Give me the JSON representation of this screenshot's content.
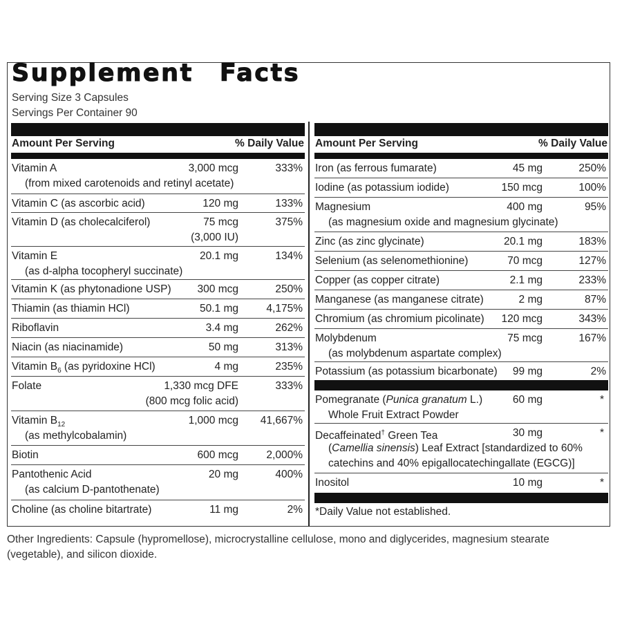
{
  "title": [
    "Supplement",
    "Facts"
  ],
  "serving_size": "Serving Size 3 Capsules",
  "servings_per_container": "Servings Per Container 90",
  "header": {
    "amount": "Amount Per Serving",
    "dv": "% Daily Value"
  },
  "left_rows": [
    {
      "name": "Vitamin A",
      "amount": "3,000 mcg",
      "dv": "333%",
      "sub": [
        "(from mixed carotenoids and retinyl acetate)"
      ]
    },
    {
      "name": "Vitamin C (as ascorbic acid)",
      "amount": "120 mg",
      "dv": "133%"
    },
    {
      "name": "Vitamin D (as cholecalciferol)",
      "amount": "75 mcg",
      "dv": "375%",
      "amount_sub": "(3,000 IU)"
    },
    {
      "name": "Vitamin E",
      "amount": "20.1 mg",
      "dv": "134%",
      "sub": [
        "(as d-alpha tocopheryl succinate)"
      ]
    },
    {
      "name": "Vitamin K (as phytonadione USP)",
      "amount": "300 mcg",
      "dv": "250%"
    },
    {
      "name": "Thiamin (as thiamin HCl)",
      "amount": "50.1 mg",
      "dv": "4,175%"
    },
    {
      "name": "Riboflavin",
      "amount": "3.4 mg",
      "dv": "262%"
    },
    {
      "name": "Niacin (as niacinamide)",
      "amount": "50 mg",
      "dv": "313%"
    },
    {
      "name": "Vitamin B",
      "name_sub": "6",
      "name_after": " (as pyridoxine HCl)",
      "amount": "4 mg",
      "dv": "235%"
    },
    {
      "name": "Folate",
      "amount": "1,330 mcg DFE",
      "dv": "333%",
      "amount_sub": "(800 mcg folic acid)"
    },
    {
      "name": "Vitamin B",
      "name_sub": "12",
      "amount": "1,000 mcg",
      "dv": "41,667%",
      "sub": [
        "(as methylcobalamin)"
      ]
    },
    {
      "name": "Biotin",
      "amount": "600 mcg",
      "dv": "2,000%"
    },
    {
      "name": "Pantothenic Acid",
      "amount": "20 mg",
      "dv": "400%",
      "sub": [
        "(as calcium D-pantothenate)"
      ]
    },
    {
      "name": "Choline (as choline bitartrate)",
      "amount": "11 mg",
      "dv": "2%"
    }
  ],
  "right_rows": [
    {
      "name": "Iron (as ferrous fumarate)",
      "amount": "45 mg",
      "dv": "250%"
    },
    {
      "name": "Iodine (as potassium iodide)",
      "amount": "150 mcg",
      "dv": "100%"
    },
    {
      "name": "Magnesium",
      "amount": "400 mg",
      "dv": "95%",
      "sub": [
        "(as magnesium oxide and magnesium glycinate)"
      ]
    },
    {
      "name": "Zinc (as zinc glycinate)",
      "amount": "20.1 mg",
      "dv": "183%"
    },
    {
      "name": "Selenium (as selenomethionine)",
      "amount": "70 mcg",
      "dv": "127%"
    },
    {
      "name": "Copper (as copper citrate)",
      "amount": "2.1 mg",
      "dv": "233%"
    },
    {
      "name": "Manganese (as manganese citrate)",
      "amount": "2 mg",
      "dv": "87%"
    },
    {
      "name": "Chromium (as chromium picolinate)",
      "amount": "120 mcg",
      "dv": "343%"
    },
    {
      "name": "Molybdenum",
      "amount": "75 mcg",
      "dv": "167%",
      "sub": [
        "(as molybdenum aspartate complex)"
      ]
    },
    {
      "name": "Potassium (as potassium bicarbonate)",
      "amount": "99 mg",
      "dv": "2%"
    }
  ],
  "other_rows": [
    {
      "name": "Pomegranate (",
      "name_italic": "Punica granatum",
      "name_after": " L.)",
      "amount": "60 mg",
      "dv": "*",
      "sub": [
        "Whole Fruit Extract Powder"
      ]
    },
    {
      "name": "Decaffeinated",
      "name_sup": "†",
      "name_after": " Green Tea",
      "amount": "30 mg",
      "dv": "*",
      "sub_italic": "Camellia sinensis",
      "sub": [
        "(",
        ") Leaf Extract [standardized to 60%",
        "catechins and 40% epigallocatechingallate (EGCG)]"
      ]
    },
    {
      "name": "Inositol",
      "amount": "10 mg",
      "dv": "*"
    }
  ],
  "footnote": "*Daily Value not established.",
  "other_ingredients": "Other Ingredients: Capsule (hypromellose), microcrystalline cellulose, mono and diglycerides, magnesium stearate (vegetable), and silicon dioxide."
}
